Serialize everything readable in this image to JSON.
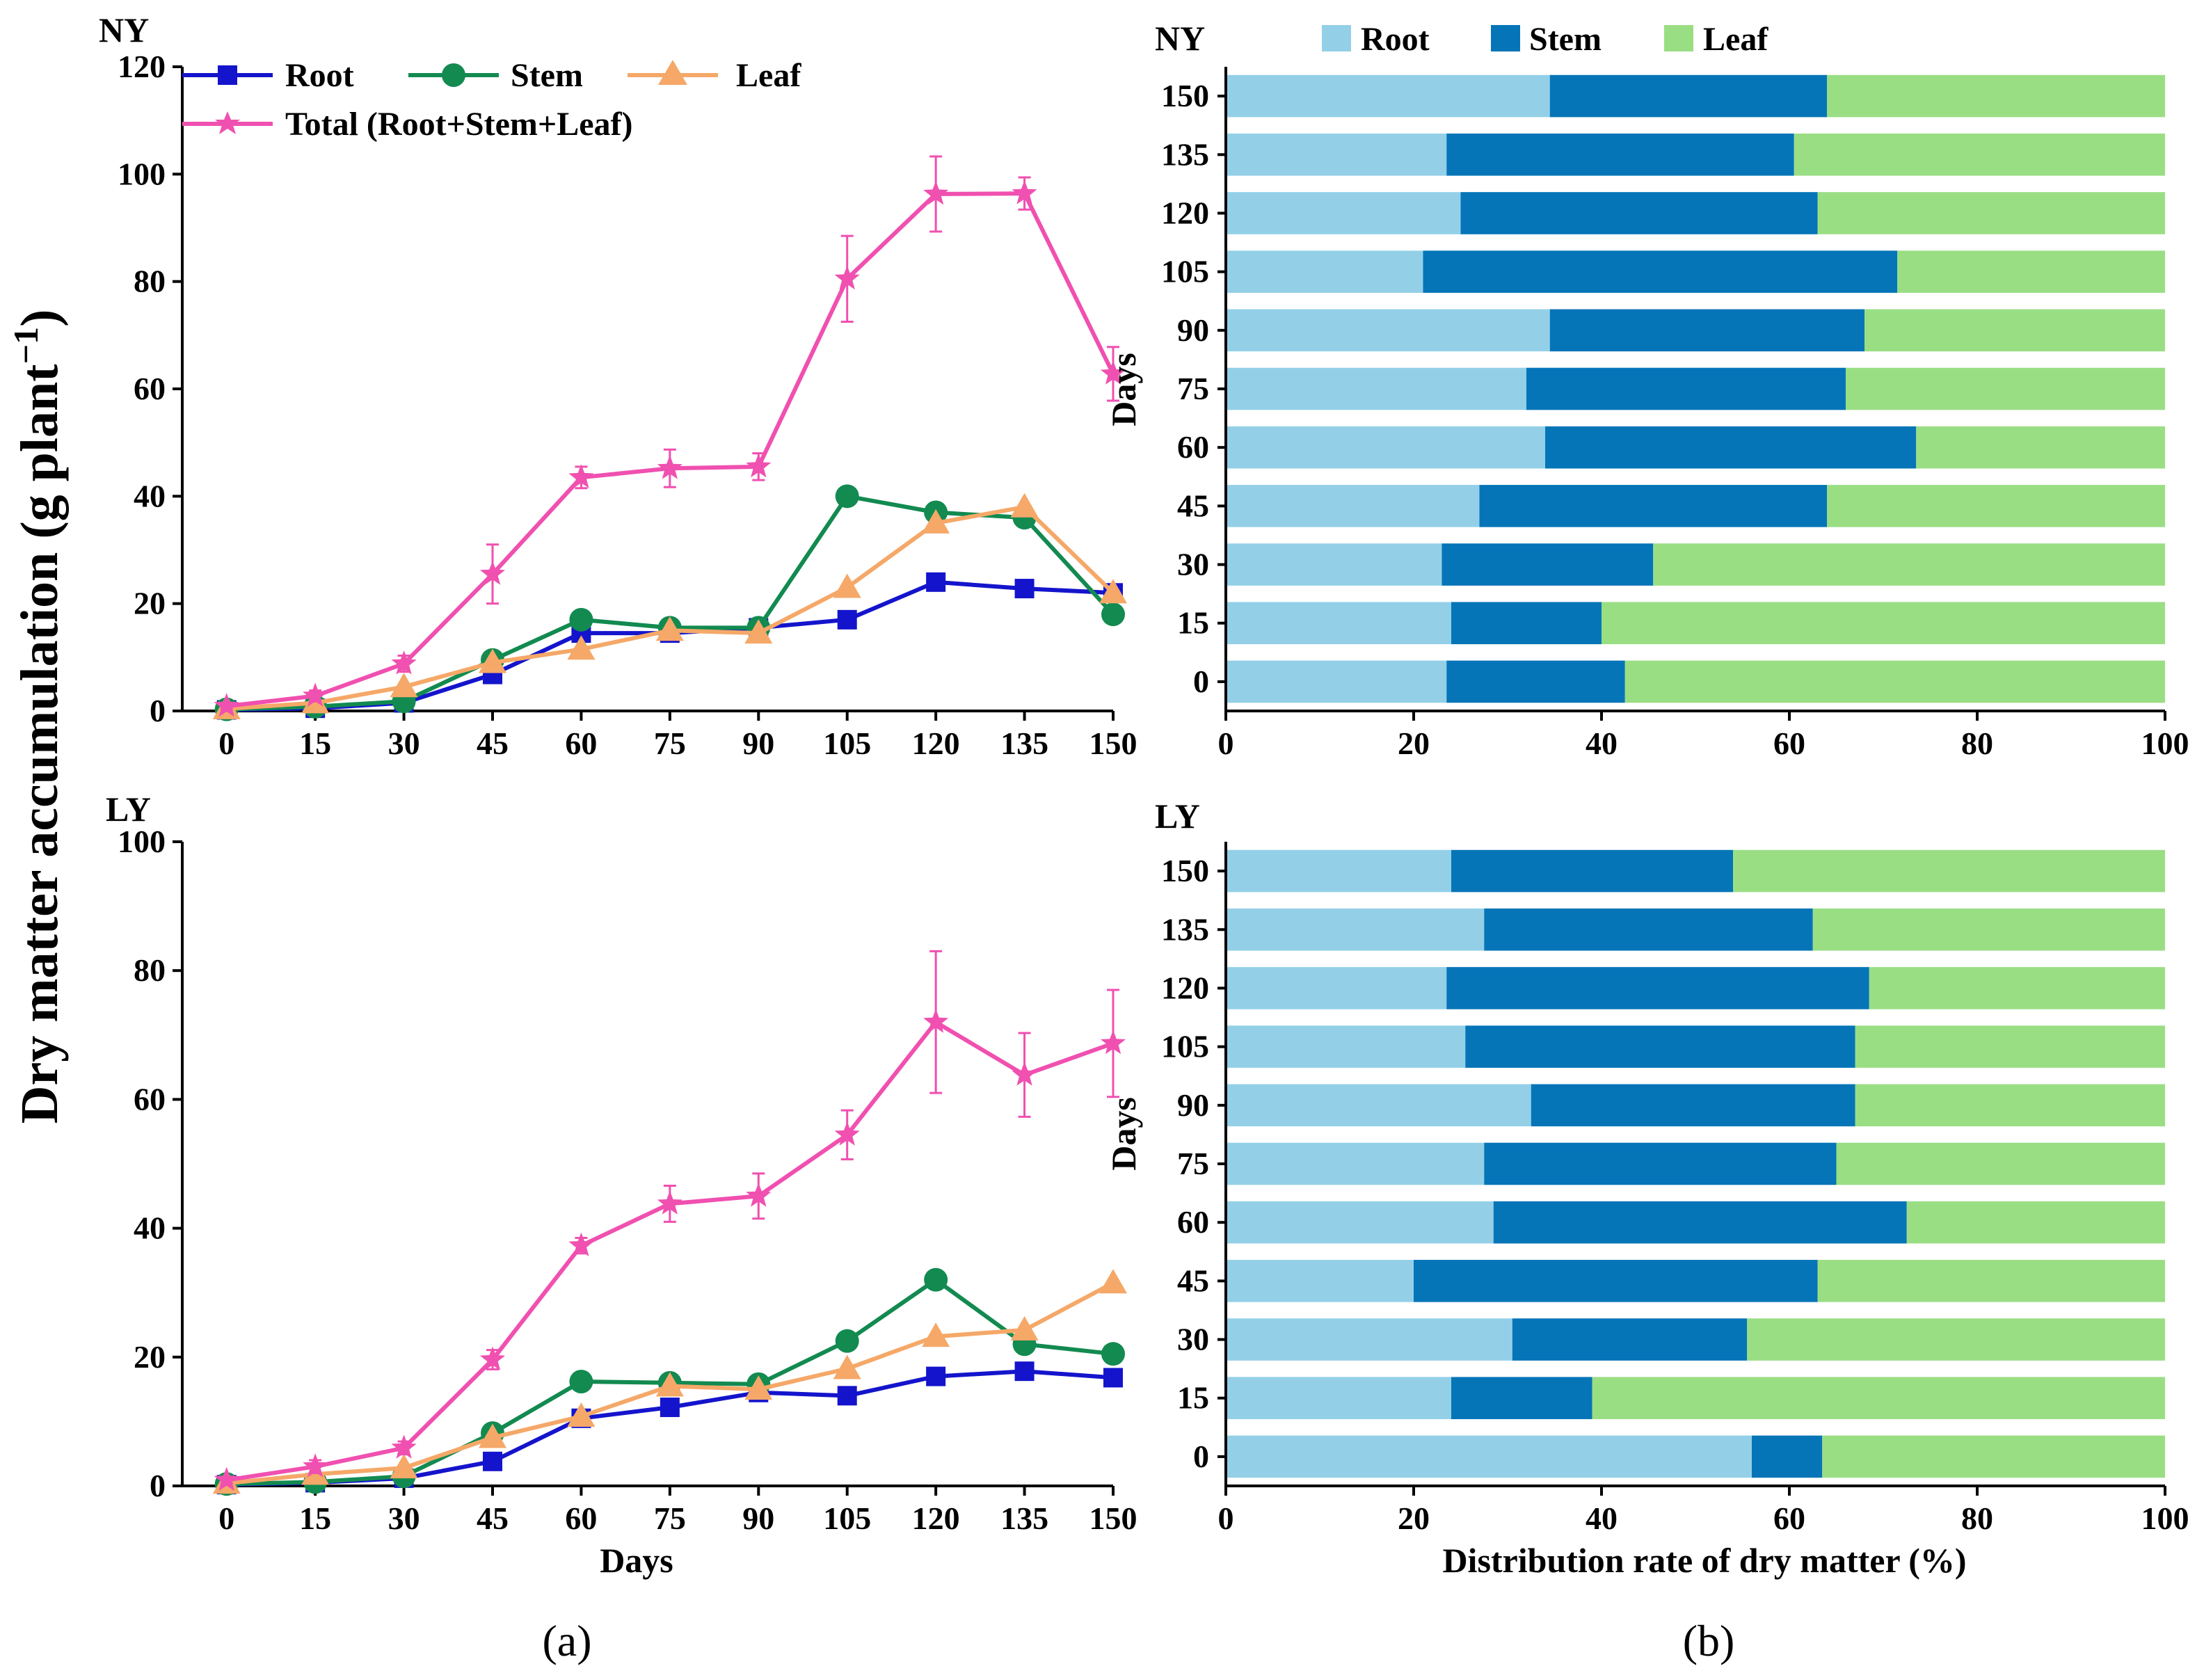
{
  "figure": {
    "y_label_main": "Dry matter accumulation (g plant",
    "y_label_sup": "−1",
    "y_label_close": ")",
    "sublabel_a": "(a)",
    "sublabel_b": "(b)"
  },
  "colors": {
    "root_line": "#1414CC",
    "stem_line": "#128A50",
    "leaf_line": "#F5A868",
    "total_line": "#F050B0",
    "root_bar": "#93D0E8",
    "stem_bar": "#0575B8",
    "leaf_bar": "#9ADE84"
  },
  "chart_data": [
    {
      "id": "line_ny",
      "type": "line",
      "panel_label": "NY",
      "x": [
        0,
        15,
        30,
        45,
        60,
        75,
        90,
        105,
        120,
        135,
        150
      ],
      "xlabel": "",
      "ylabel": "Dry matter accumulation (g plant−1)",
      "ylim": [
        0,
        120
      ],
      "yticks": [
        0,
        20,
        40,
        60,
        80,
        100,
        120
      ],
      "legend": [
        "Root",
        "Stem",
        "Leaf",
        "Total (Root+Stem+Leaf)"
      ],
      "series": [
        {
          "name": "Root",
          "key": "root",
          "values": [
            0.2,
            0.5,
            1.5,
            6.8,
            14.5,
            14.5,
            15.5,
            17,
            24,
            22.8,
            22
          ]
        },
        {
          "name": "Stem",
          "key": "stem",
          "values": [
            0.3,
            0.8,
            1.8,
            9.5,
            17,
            15.5,
            15.5,
            40,
            37,
            36,
            18
          ]
        },
        {
          "name": "Leaf",
          "key": "leaf",
          "values": [
            0.4,
            1.5,
            4.5,
            9,
            11.5,
            15,
            14.5,
            23,
            35,
            38,
            22
          ]
        },
        {
          "name": "Total (Root+Stem+Leaf)",
          "key": "total",
          "values": [
            0.9,
            2.8,
            8.8,
            25.5,
            43.5,
            45.2,
            45.5,
            80.5,
            96.3,
            96.4,
            62.8
          ],
          "errors": [
            0.5,
            1,
            1.5,
            5.5,
            2,
            3.5,
            2.5,
            8,
            7,
            3,
            5
          ]
        }
      ]
    },
    {
      "id": "line_ly",
      "type": "line",
      "panel_label": "LY",
      "x": [
        0,
        15,
        30,
        45,
        60,
        75,
        90,
        105,
        120,
        135,
        150
      ],
      "xlabel": "Days",
      "ylabel": "Dry matter accumulation (g plant−1)",
      "ylim": [
        0,
        100
      ],
      "yticks": [
        0,
        20,
        40,
        60,
        80,
        100
      ],
      "series": [
        {
          "name": "Root",
          "key": "root",
          "values": [
            0.2,
            0.5,
            1.2,
            3.8,
            10.5,
            12.2,
            14.5,
            14,
            17,
            17.8,
            16.8
          ]
        },
        {
          "name": "Stem",
          "key": "stem",
          "values": [
            0.3,
            0.6,
            1.5,
            8.2,
            16.2,
            16,
            15.8,
            22.5,
            32,
            22,
            20.5
          ]
        },
        {
          "name": "Leaf",
          "key": "leaf",
          "values": [
            0.4,
            1.8,
            2.8,
            7.5,
            10.8,
            15.5,
            15,
            18.2,
            23.2,
            24.2,
            31.5
          ]
        },
        {
          "name": "Total (Root+Stem+Leaf)",
          "key": "total",
          "values": [
            0.9,
            3,
            5.9,
            19.6,
            37.3,
            43.8,
            45,
            54.5,
            72,
            63.8,
            68.7
          ],
          "errors": [
            0.5,
            1,
            1,
            1.5,
            1.2,
            2.8,
            3.5,
            3.8,
            11,
            6.5,
            8.3
          ]
        }
      ]
    },
    {
      "id": "bar_ny",
      "type": "bar",
      "orientation": "horizontal",
      "stacked": true,
      "panel_label": "NY",
      "categories": [
        "0",
        "15",
        "30",
        "45",
        "60",
        "75",
        "90",
        "105",
        "120",
        "135",
        "150"
      ],
      "ylabel": "Days",
      "xlabel": "",
      "xlim": [
        0,
        100
      ],
      "xticks": [
        0,
        20,
        40,
        60,
        80,
        100
      ],
      "legend": [
        "Root",
        "Stem",
        "Leaf"
      ],
      "series": [
        {
          "name": "Root",
          "key": "root",
          "values": [
            23.5,
            24,
            23,
            27,
            34,
            32,
            34.5,
            21,
            25,
            23.5,
            34.5
          ]
        },
        {
          "name": "Stem",
          "key": "stem",
          "values": [
            19,
            16,
            22.5,
            37,
            39.5,
            34,
            33.5,
            50.5,
            38,
            37,
            29.5
          ]
        },
        {
          "name": "Leaf",
          "key": "leaf",
          "values": [
            57.5,
            60,
            54.5,
            36,
            26.5,
            34,
            32,
            28.5,
            37,
            39.5,
            36
          ]
        }
      ]
    },
    {
      "id": "bar_ly",
      "type": "bar",
      "orientation": "horizontal",
      "stacked": true,
      "panel_label": "LY",
      "categories": [
        "0",
        "15",
        "30",
        "45",
        "60",
        "75",
        "90",
        "105",
        "120",
        "135",
        "150"
      ],
      "ylabel": "Days",
      "xlabel": "Distribution rate of dry matter (%)",
      "xlim": [
        0,
        100
      ],
      "xticks": [
        0,
        20,
        40,
        60,
        80,
        100
      ],
      "series": [
        {
          "name": "Root",
          "key": "root",
          "values": [
            56,
            24,
            30.5,
            20,
            28.5,
            27.5,
            32.5,
            25.5,
            23.5,
            27.5,
            24
          ]
        },
        {
          "name": "Stem",
          "key": "stem",
          "values": [
            7.5,
            15,
            25,
            43,
            44,
            37.5,
            34.5,
            41.5,
            45,
            35,
            30
          ]
        },
        {
          "name": "Leaf",
          "key": "leaf",
          "values": [
            36.5,
            61,
            44.5,
            37,
            27.5,
            35,
            33,
            33,
            31.5,
            37.5,
            46
          ]
        }
      ]
    }
  ]
}
